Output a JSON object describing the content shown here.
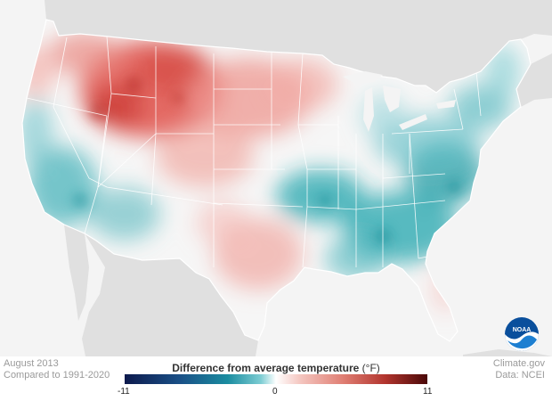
{
  "map": {
    "subject": "Contiguous United States temperature anomaly",
    "colors": {
      "land_outside": "#e0e0e0",
      "ocean": "#f4f4f4",
      "warm": "#e0524b",
      "cool": "#22a6ad"
    }
  },
  "footer": {
    "left_line1": "August 2013",
    "left_line2": "Compared to 1991-2020",
    "right_line1": "Climate.gov",
    "right_line2": "Data: NCEI"
  },
  "legend": {
    "title": "Difference from average temperature",
    "unit": "(°F)",
    "min_label": "-11",
    "mid_label": "0",
    "max_label": "11"
  },
  "logo": {
    "text": "NOAA",
    "icon": "noaa-logo-icon"
  }
}
